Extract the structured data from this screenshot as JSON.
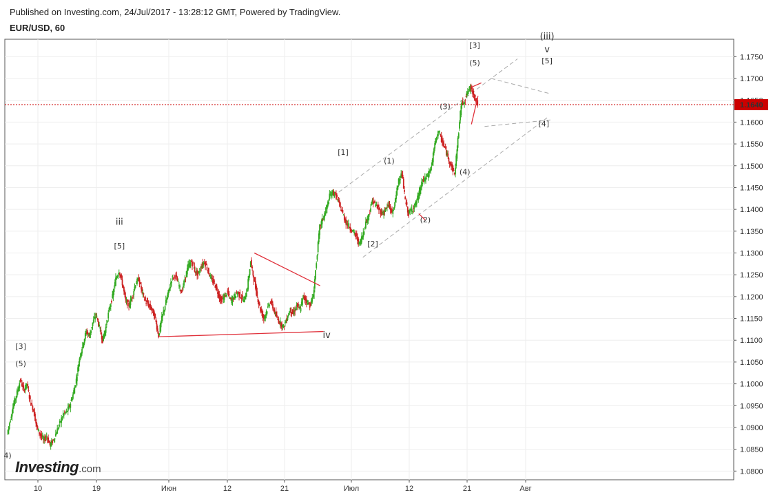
{
  "header": {
    "published_text": "Published on Investing.com, 24/Jul/2017 - 13:28:12 GMT, Powered by TradingView.",
    "symbol": "EUR/USD, 60"
  },
  "logo": {
    "main": "Investing",
    "suffix": ".com"
  },
  "colors": {
    "up_candle": "#33aa22",
    "down_candle": "#cc2222",
    "price_line": "#cc0000",
    "price_badge": "#cc0000",
    "trendline": "#e0303a",
    "channel": "#aaaaaa",
    "grid": "#eeeeee"
  },
  "chart_data": {
    "type": "candlestick",
    "title": "EUR/USD, 60",
    "x_ticks": [
      "10",
      "19",
      "Июн",
      "12",
      "21",
      "Июл",
      "12",
      "21",
      "Авг"
    ],
    "y_ticks": [
      "1.1750",
      "1.1700",
      "1.1650",
      "1.1600",
      "1.1550",
      "1.1500",
      "1.1450",
      "1.1400",
      "1.1350",
      "1.1300",
      "1.1250",
      "1.1200",
      "1.1150",
      "1.1100",
      "1.1050",
      "1.1000",
      "1.0950",
      "1.0900",
      "1.0850",
      "1.0800"
    ],
    "ylim": [
      1.078,
      1.179
    ],
    "grid": true,
    "current_price": "1.1640",
    "price_path": [
      [
        0,
        1.0885
      ],
      [
        0.5,
        1.092
      ],
      [
        1,
        1.0955
      ],
      [
        1.5,
        1.098
      ],
      [
        2,
        1.101
      ],
      [
        2.5,
        1.0985
      ],
      [
        3,
        1.1
      ],
      [
        3.5,
        1.096
      ],
      [
        4,
        1.094
      ],
      [
        4.5,
        1.09
      ],
      [
        5,
        1.0885
      ],
      [
        5.5,
        1.087
      ],
      [
        6,
        1.088
      ],
      [
        6.5,
        1.086
      ],
      [
        7,
        1.087
      ],
      [
        7.5,
        1.089
      ],
      [
        8,
        1.091
      ],
      [
        8.5,
        1.093
      ],
      [
        9,
        1.0935
      ],
      [
        9.5,
        1.095
      ],
      [
        10,
        1.0975
      ],
      [
        10.5,
        1.101
      ],
      [
        11,
        1.106
      ],
      [
        11.5,
        1.109
      ],
      [
        12,
        1.112
      ],
      [
        12.5,
        1.111
      ],
      [
        13,
        1.114
      ],
      [
        13.5,
        1.116
      ],
      [
        14,
        1.113
      ],
      [
        14.5,
        1.11
      ],
      [
        15,
        1.113
      ],
      [
        15.5,
        1.117
      ],
      [
        16,
        1.12
      ],
      [
        16.5,
        1.124
      ],
      [
        17,
        1.126
      ],
      [
        17.5,
        1.123
      ],
      [
        18,
        1.119
      ],
      [
        18.5,
        1.118
      ],
      [
        19,
        1.12
      ],
      [
        19.5,
        1.123
      ],
      [
        20,
        1.124
      ],
      [
        20.5,
        1.121
      ],
      [
        21,
        1.119
      ],
      [
        21.5,
        1.118
      ],
      [
        22,
        1.117
      ],
      [
        22.5,
        1.115
      ],
      [
        23,
        1.111
      ],
      [
        23.5,
        1.115
      ],
      [
        24,
        1.118
      ],
      [
        24.5,
        1.121
      ],
      [
        25,
        1.124
      ],
      [
        25.5,
        1.125
      ],
      [
        26,
        1.123
      ],
      [
        26.5,
        1.121
      ],
      [
        27,
        1.124
      ],
      [
        27.5,
        1.127
      ],
      [
        28,
        1.128
      ],
      [
        28.5,
        1.126
      ],
      [
        29,
        1.125
      ],
      [
        29.5,
        1.127
      ],
      [
        30,
        1.128
      ],
      [
        30.5,
        1.126
      ],
      [
        31,
        1.124
      ],
      [
        31.5,
        1.123
      ],
      [
        32,
        1.121
      ],
      [
        32.5,
        1.119
      ],
      [
        33,
        1.12
      ],
      [
        33.5,
        1.121
      ],
      [
        34,
        1.119
      ],
      [
        34.5,
        1.12
      ],
      [
        35,
        1.121
      ],
      [
        35.5,
        1.12
      ],
      [
        36,
        1.119
      ],
      [
        36.5,
        1.122
      ],
      [
        37,
        1.128
      ],
      [
        37.5,
        1.124
      ],
      [
        38,
        1.12
      ],
      [
        38.5,
        1.117
      ],
      [
        39,
        1.115
      ],
      [
        39.5,
        1.117
      ],
      [
        40,
        1.119
      ],
      [
        40.5,
        1.117
      ],
      [
        41,
        1.115
      ],
      [
        41.5,
        1.114
      ],
      [
        42,
        1.113
      ],
      [
        42.5,
        1.115
      ],
      [
        43,
        1.117
      ],
      [
        43.5,
        1.116
      ],
      [
        44,
        1.118
      ],
      [
        44.5,
        1.117
      ],
      [
        45,
        1.12
      ],
      [
        45.5,
        1.119
      ],
      [
        46,
        1.118
      ],
      [
        46.5,
        1.12
      ],
      [
        47,
        1.128
      ],
      [
        47.5,
        1.136
      ],
      [
        48,
        1.138
      ],
      [
        48.5,
        1.14
      ],
      [
        49,
        1.143
      ],
      [
        49.5,
        1.144
      ],
      [
        50,
        1.143
      ],
      [
        50.5,
        1.141
      ],
      [
        51,
        1.139
      ],
      [
        51.5,
        1.137
      ],
      [
        52,
        1.136
      ],
      [
        52.5,
        1.135
      ],
      [
        53,
        1.134
      ],
      [
        53.5,
        1.132
      ],
      [
        54,
        1.134
      ],
      [
        54.5,
        1.137
      ],
      [
        55,
        1.139
      ],
      [
        55.5,
        1.142
      ],
      [
        56,
        1.141
      ],
      [
        56.5,
        1.14
      ],
      [
        57,
        1.139
      ],
      [
        57.5,
        1.14
      ],
      [
        58,
        1.141
      ],
      [
        58.5,
        1.139
      ],
      [
        59,
        1.142
      ],
      [
        59.5,
        1.147
      ],
      [
        60,
        1.148
      ],
      [
        60.5,
        1.142
      ],
      [
        61,
        1.139
      ],
      [
        61.5,
        1.14
      ],
      [
        62,
        1.141
      ],
      [
        62.5,
        1.143
      ],
      [
        63,
        1.146
      ],
      [
        63.5,
        1.147
      ],
      [
        64,
        1.148
      ],
      [
        64.5,
        1.15
      ],
      [
        65,
        1.155
      ],
      [
        65.5,
        1.158
      ],
      [
        66,
        1.156
      ],
      [
        66.5,
        1.154
      ],
      [
        67,
        1.152
      ],
      [
        67.5,
        1.15
      ],
      [
        68,
        1.148
      ],
      [
        68.5,
        1.156
      ],
      [
        69,
        1.164
      ],
      [
        69.5,
        1.165
      ],
      [
        70,
        1.167
      ],
      [
        70.5,
        1.168
      ],
      [
        71,
        1.166
      ],
      [
        71.5,
        1.164
      ]
    ],
    "annotations": [
      {
        "text": "[3]",
        "x": 2.0,
        "y": 1.108
      },
      {
        "text": "(5)",
        "x": 2.0,
        "y": 1.104
      },
      {
        "text": "4)",
        "x": 0.0,
        "y": 1.083
      },
      {
        "text": "iii",
        "x": 17.0,
        "y": 1.1365
      },
      {
        "text": "[5]",
        "x": 17.0,
        "y": 1.131
      },
      {
        "text": "iv",
        "x": 48.5,
        "y": 1.1105
      },
      {
        "text": "[1]",
        "x": 51.0,
        "y": 1.1525
      },
      {
        "text": "[2]",
        "x": 55.5,
        "y": 1.1315
      },
      {
        "text": "(1)",
        "x": 58.0,
        "y": 1.1505
      },
      {
        "text": "(2)",
        "x": 63.5,
        "y": 1.137
      },
      {
        "text": "(3)",
        "x": 66.5,
        "y": 1.163
      },
      {
        "text": "(4)",
        "x": 69.5,
        "y": 1.148
      },
      {
        "text": "[3]",
        "x": 71.0,
        "y": 1.177
      },
      {
        "text": "(5)",
        "x": 71.0,
        "y": 1.173
      },
      {
        "text": "(iii)",
        "x": 82.0,
        "y": 1.179
      },
      {
        "text": "v",
        "x": 82.0,
        "y": 1.176
      },
      {
        "text": "[5]",
        "x": 82.0,
        "y": 1.1735
      },
      {
        "text": "[4]",
        "x": 81.5,
        "y": 1.159
      }
    ],
    "red_lines": [
      {
        "from": [
          23,
          1.1108
        ],
        "to": [
          48,
          1.112
        ]
      },
      {
        "from": [
          37.5,
          1.13
        ],
        "to": [
          47.5,
          1.1225
        ]
      },
      {
        "from": [
          62.5,
          1.139
        ],
        "to": [
          63.5,
          1.1375
        ]
      },
      {
        "from": [
          70.5,
          1.168
        ],
        "to": [
          72.0,
          1.169
        ]
      },
      {
        "from": [
          70.5,
          1.1595
        ],
        "to": [
          71.5,
          1.166
        ]
      }
    ],
    "channel_lines": [
      {
        "from": [
          49.5,
          1.143
        ],
        "to": [
          77.5,
          1.1745
        ]
      },
      {
        "from": [
          54,
          1.129
        ],
        "to": [
          82,
          1.161
        ]
      },
      {
        "from": [
          73.5,
          1.17
        ],
        "to": [
          82.5,
          1.1665
        ]
      },
      {
        "from": [
          72.5,
          1.159
        ],
        "to": [
          82.5,
          1.1605
        ]
      }
    ]
  }
}
